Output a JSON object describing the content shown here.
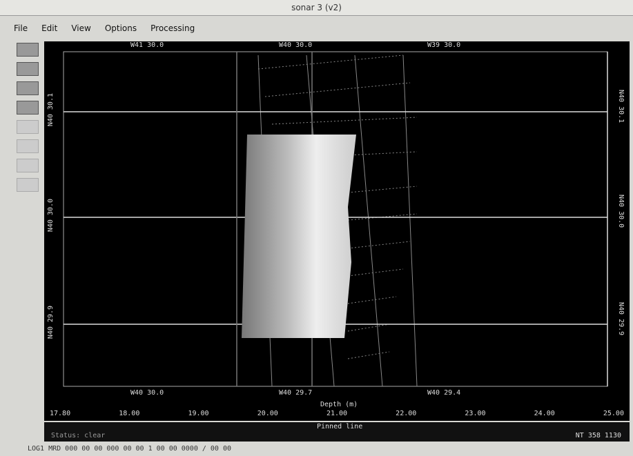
{
  "window": {
    "title": "sonar 3 (v2)",
    "menu": [
      "File",
      "Edit",
      "View",
      "Options",
      "Processing"
    ]
  },
  "display": {
    "top_labels": [
      "W41 30.0",
      "W40 30.0",
      "W39 30.0"
    ],
    "left_labels": [
      "N40 30.1",
      "N40 30.0",
      "N40 29.9"
    ],
    "right_labels": [
      "N40 30.1",
      "N40 30.0",
      "N40 29.9"
    ],
    "bottom_labels": [
      "W40 30.0",
      "W40 29.7",
      "W40 29.4"
    ]
  },
  "scale": {
    "title": "Depth (m)",
    "ticks": [
      "17.80",
      "18.00",
      "19.00",
      "20.00",
      "21.00",
      "22.00",
      "23.00",
      "24.00",
      "25.00"
    ],
    "caption": "Pinned line"
  },
  "status": {
    "left": "Status: clear",
    "right": "NT 358 1130"
  },
  "footer": {
    "text": "LOG1    MRD 000 00 00 000 00 00 1 00 00 0000 / 00 00"
  }
}
